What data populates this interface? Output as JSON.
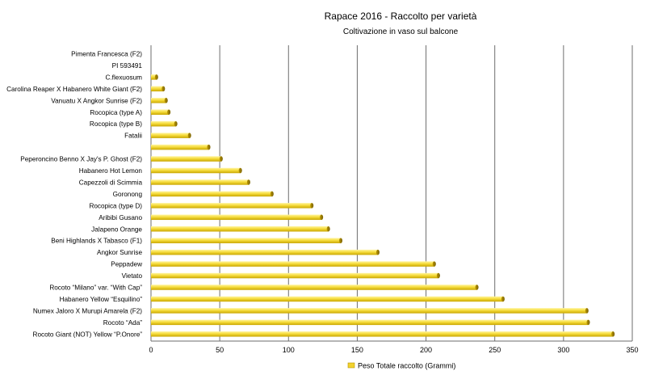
{
  "chart_data": {
    "type": "bar",
    "orientation": "horizontal",
    "title": "Rapace 2016 - Raccolto per varietà",
    "subtitle": "Coltivazione in vaso sul balcone",
    "xlim": [
      0,
      350
    ],
    "xticks": [
      "0",
      "50",
      "100",
      "150",
      "200",
      "250",
      "300",
      "350"
    ],
    "grid": true,
    "legend_position": "bottom",
    "bar_color": "#f2d22e",
    "categories": [
      "Pimenta Francesca (F2)",
      "PI 593491",
      "C.flexuosum",
      "Carolina Reaper X Habanero White Giant (F2)",
      "Vanuatu X Angkor Sunrise (F2)",
      "Rocopica (type A)",
      "Rocopica (type B)",
      "Fatalii",
      "",
      "Peperoncino Benno X Jay's P. Ghost (F2)",
      "Habanero Hot Lemon",
      "Capezzoli di Scimmia",
      "Goronong",
      "Rocopica (type D)",
      "Aribibi Gusano",
      "Jalapeno Orange",
      "Beni Highlands X Tabasco (F1)",
      "Angkor Sunrise",
      "Peppadew",
      "Vietato",
      "Rocoto “Milano” var. “With Cap”",
      "Habanero Yellow “Esquilino”",
      "Numex Jaloro X Murupi Amarela (F2)",
      "Rocoto “Ada”",
      "Rocoto Giant (NOT) Yellow “P.Onore”"
    ],
    "series": [
      {
        "name": "Peso Totale raccolto (Grammi)",
        "values": [
          0,
          0,
          4,
          9,
          11,
          13,
          18,
          28,
          42,
          51,
          65,
          71,
          88,
          117,
          124,
          129,
          138,
          165,
          206,
          209,
          237,
          256,
          317,
          318,
          336
        ]
      }
    ]
  }
}
